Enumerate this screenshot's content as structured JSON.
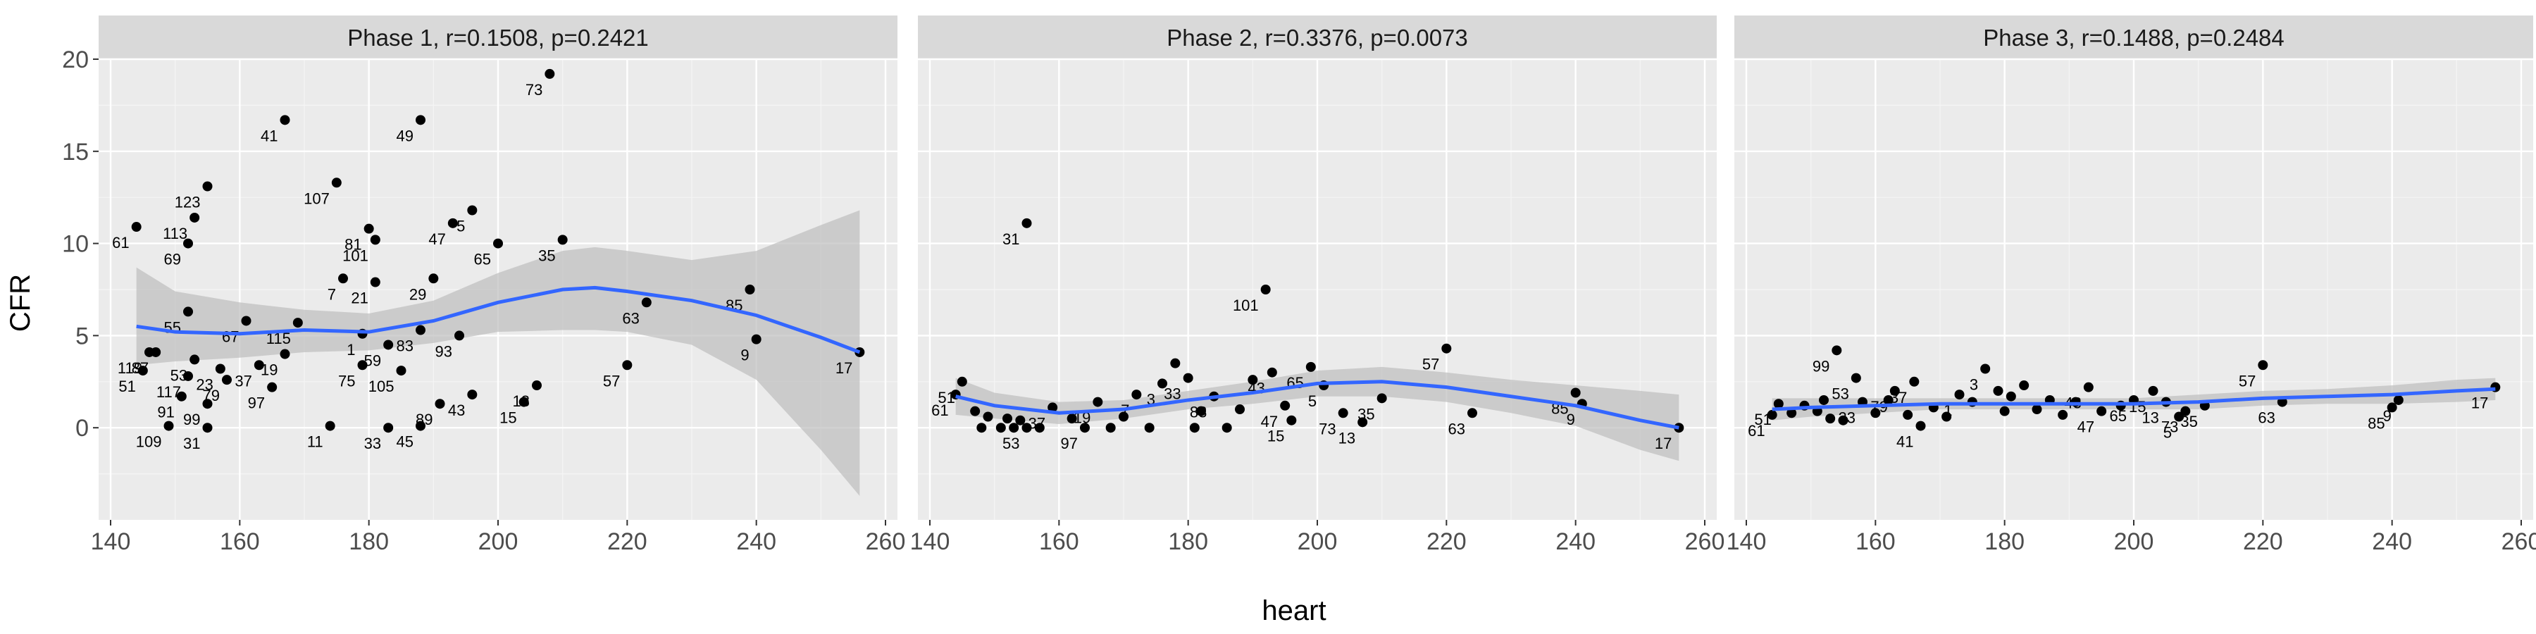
{
  "colors": {
    "panel_bg": "#ebebeb",
    "strip_bg": "#d9d9d9",
    "grid_major": "#ffffff",
    "point": "#000000",
    "smooth_line": "#3366ff",
    "confidence_band": "#bdbdbd"
  },
  "chart_data": {
    "type": "scatter",
    "xlabel": "heart",
    "ylabel": "CFR",
    "xlim": [
      140,
      260
    ],
    "ylim": [
      -5,
      20
    ],
    "x_ticks": [
      "140",
      "160",
      "180",
      "200",
      "220",
      "240",
      "260"
    ],
    "y_ticks": [
      "0",
      "5",
      "10",
      "15",
      "20"
    ],
    "grid": true,
    "panels": [
      {
        "title": "Phase 1, r=0.1508, p=0.2421",
        "points": [
          {
            "x": 144,
            "y": 10.9,
            "label": "61"
          },
          {
            "x": 146,
            "y": 4.1,
            "label": "119"
          },
          {
            "x": 145,
            "y": 3.1,
            "label": "51"
          },
          {
            "x": 147,
            "y": 4.1,
            "label": "87"
          },
          {
            "x": 149,
            "y": 0.1,
            "label": "109"
          },
          {
            "x": 151,
            "y": 1.7,
            "label": "91"
          },
          {
            "x": 152,
            "y": 2.8,
            "label": "117"
          },
          {
            "x": 153,
            "y": 3.7,
            "label": "53"
          },
          {
            "x": 152,
            "y": 10.0,
            "label": "69"
          },
          {
            "x": 153,
            "y": 11.4,
            "label": "113"
          },
          {
            "x": 152,
            "y": 6.3,
            "label": "55"
          },
          {
            "x": 155,
            "y": 13.1,
            "label": "123"
          },
          {
            "x": 155,
            "y": 1.3,
            "label": "99"
          },
          {
            "x": 155,
            "y": 0.0,
            "label": "31"
          },
          {
            "x": 157,
            "y": 3.2,
            "label": "23"
          },
          {
            "x": 158,
            "y": 2.6,
            "label": "79"
          },
          {
            "x": 161,
            "y": 5.8,
            "label": "67"
          },
          {
            "x": 163,
            "y": 3.4,
            "label": "37"
          },
          {
            "x": 165,
            "y": 2.2,
            "label": "97"
          },
          {
            "x": 167,
            "y": 16.7,
            "label": "41"
          },
          {
            "x": 167,
            "y": 4.0,
            "label": "19"
          },
          {
            "x": 169,
            "y": 5.7,
            "label": "115"
          },
          {
            "x": 174,
            "y": 0.1,
            "label": "11"
          },
          {
            "x": 175,
            "y": 13.3,
            "label": "107"
          },
          {
            "x": 176,
            "y": 8.1,
            "label": "7"
          },
          {
            "x": 179,
            "y": 5.1,
            "label": "1"
          },
          {
            "x": 179,
            "y": 3.4,
            "label": "75"
          },
          {
            "x": 180,
            "y": 10.8,
            "label": "81"
          },
          {
            "x": 181,
            "y": 7.9,
            "label": "21"
          },
          {
            "x": 181,
            "y": 10.2,
            "label": "101"
          },
          {
            "x": 183,
            "y": 4.5,
            "label": "59"
          },
          {
            "x": 183,
            "y": 0.0,
            "label": "33"
          },
          {
            "x": 185,
            "y": 3.1,
            "label": "105"
          },
          {
            "x": 188,
            "y": 16.7,
            "label": "49"
          },
          {
            "x": 188,
            "y": 5.3,
            "label": "83"
          },
          {
            "x": 188,
            "y": 0.1,
            "label": "45"
          },
          {
            "x": 190,
            "y": 8.1,
            "label": "29"
          },
          {
            "x": 191,
            "y": 1.3,
            "label": "89"
          },
          {
            "x": 193,
            "y": 11.1,
            "label": "47"
          },
          {
            "x": 194,
            "y": 5.0,
            "label": "93"
          },
          {
            "x": 196,
            "y": 1.8,
            "label": "43"
          },
          {
            "x": 196,
            "y": 11.8,
            "label": "5"
          },
          {
            "x": 200,
            "y": 10.0,
            "label": "65"
          },
          {
            "x": 204,
            "y": 1.4,
            "label": "15"
          },
          {
            "x": 206,
            "y": 2.3,
            "label": "13"
          },
          {
            "x": 208,
            "y": 19.2,
            "label": "73"
          },
          {
            "x": 210,
            "y": 10.2,
            "label": "35"
          },
          {
            "x": 220,
            "y": 3.4,
            "label": "57"
          },
          {
            "x": 223,
            "y": 6.8,
            "label": "63"
          },
          {
            "x": 239,
            "y": 7.5,
            "label": "85"
          },
          {
            "x": 240,
            "y": 4.8,
            "label": "9"
          },
          {
            "x": 256,
            "y": 4.1,
            "label": "17"
          }
        ],
        "smooth": [
          [
            144,
            5.5
          ],
          [
            150,
            5.2
          ],
          [
            160,
            5.1
          ],
          [
            170,
            5.3
          ],
          [
            180,
            5.2
          ],
          [
            190,
            5.8
          ],
          [
            200,
            6.8
          ],
          [
            210,
            7.5
          ],
          [
            215,
            7.6
          ],
          [
            220,
            7.4
          ],
          [
            230,
            6.9
          ],
          [
            240,
            6.1
          ],
          [
            250,
            4.9
          ],
          [
            256,
            4.1
          ]
        ],
        "band": [
          [
            144,
            8.7,
            3.4
          ],
          [
            150,
            7.4,
            3.6
          ],
          [
            160,
            6.8,
            3.8
          ],
          [
            170,
            6.4,
            4.1
          ],
          [
            180,
            6.2,
            4.2
          ],
          [
            190,
            6.9,
            4.6
          ],
          [
            200,
            8.4,
            5.2
          ],
          [
            210,
            9.6,
            5.3
          ],
          [
            215,
            9.8,
            5.3
          ],
          [
            220,
            9.6,
            5.2
          ],
          [
            230,
            9.1,
            4.5
          ],
          [
            240,
            9.6,
            2.6
          ],
          [
            250,
            11.0,
            -1.2
          ],
          [
            256,
            11.8,
            -3.7
          ]
        ]
      },
      {
        "title": "Phase 2, r=0.3376, p=0.0073",
        "points": [
          {
            "x": 144,
            "y": 1.8,
            "label": "61"
          },
          {
            "x": 145,
            "y": 2.5,
            "label": "51"
          },
          {
            "x": 147,
            "y": 0.9,
            "label": ""
          },
          {
            "x": 148,
            "y": 0.0,
            "label": ""
          },
          {
            "x": 149,
            "y": 0.6,
            "label": ""
          },
          {
            "x": 151,
            "y": 0.0,
            "label": ""
          },
          {
            "x": 152,
            "y": 0.5,
            "label": ""
          },
          {
            "x": 153,
            "y": 0.0,
            "label": ""
          },
          {
            "x": 154,
            "y": 0.4,
            "label": ""
          },
          {
            "x": 155,
            "y": 0.0,
            "label": "53"
          },
          {
            "x": 155,
            "y": 11.1,
            "label": "31"
          },
          {
            "x": 157,
            "y": 0.0,
            "label": ""
          },
          {
            "x": 159,
            "y": 1.1,
            "label": "37"
          },
          {
            "x": 162,
            "y": 0.5,
            "label": ""
          },
          {
            "x": 164,
            "y": 0.0,
            "label": "97"
          },
          {
            "x": 166,
            "y": 1.4,
            "label": "19"
          },
          {
            "x": 168,
            "y": 0.0,
            "label": ""
          },
          {
            "x": 170,
            "y": 0.6,
            "label": ""
          },
          {
            "x": 172,
            "y": 1.8,
            "label": "7"
          },
          {
            "x": 174,
            "y": 0.0,
            "label": ""
          },
          {
            "x": 176,
            "y": 2.4,
            "label": "3"
          },
          {
            "x": 178,
            "y": 3.5,
            "label": ""
          },
          {
            "x": 180,
            "y": 2.7,
            "label": "33"
          },
          {
            "x": 181,
            "y": 0.0,
            "label": ""
          },
          {
            "x": 182,
            "y": 0.9,
            "label": ""
          },
          {
            "x": 184,
            "y": 1.7,
            "label": "83"
          },
          {
            "x": 186,
            "y": 0.0,
            "label": ""
          },
          {
            "x": 188,
            "y": 1.0,
            "label": ""
          },
          {
            "x": 190,
            "y": 2.6,
            "label": ""
          },
          {
            "x": 192,
            "y": 7.5,
            "label": "101"
          },
          {
            "x": 193,
            "y": 3.0,
            "label": "43"
          },
          {
            "x": 195,
            "y": 1.2,
            "label": "47"
          },
          {
            "x": 196,
            "y": 0.4,
            "label": "15"
          },
          {
            "x": 199,
            "y": 3.3,
            "label": "65"
          },
          {
            "x": 201,
            "y": 2.3,
            "label": "5"
          },
          {
            "x": 204,
            "y": 0.8,
            "label": "73"
          },
          {
            "x": 207,
            "y": 0.3,
            "label": "13"
          },
          {
            "x": 210,
            "y": 1.6,
            "label": "35"
          },
          {
            "x": 220,
            "y": 4.3,
            "label": "57"
          },
          {
            "x": 224,
            "y": 0.8,
            "label": "63"
          },
          {
            "x": 240,
            "y": 1.9,
            "label": "85"
          },
          {
            "x": 241,
            "y": 1.3,
            "label": "9"
          },
          {
            "x": 256,
            "y": 0.0,
            "label": "17"
          }
        ],
        "smooth": [
          [
            144,
            1.7
          ],
          [
            150,
            1.2
          ],
          [
            160,
            0.8
          ],
          [
            170,
            1.0
          ],
          [
            180,
            1.5
          ],
          [
            190,
            1.9
          ],
          [
            200,
            2.4
          ],
          [
            210,
            2.5
          ],
          [
            220,
            2.2
          ],
          [
            230,
            1.7
          ],
          [
            240,
            1.2
          ],
          [
            250,
            0.4
          ],
          [
            256,
            0.0
          ]
        ],
        "band": [
          [
            144,
            2.7,
            0.7
          ],
          [
            150,
            1.9,
            0.5
          ],
          [
            160,
            1.4,
            0.2
          ],
          [
            170,
            1.5,
            0.5
          ],
          [
            180,
            2.0,
            1.0
          ],
          [
            190,
            2.5,
            1.3
          ],
          [
            200,
            3.1,
            1.7
          ],
          [
            210,
            3.3,
            1.7
          ],
          [
            220,
            3.0,
            1.4
          ],
          [
            230,
            2.6,
            0.8
          ],
          [
            240,
            2.3,
            0.1
          ],
          [
            250,
            2.0,
            -1.2
          ],
          [
            256,
            1.8,
            -1.8
          ]
        ]
      },
      {
        "title": "Phase 3, r=0.1488, p=0.2484",
        "points": [
          {
            "x": 144,
            "y": 0.7,
            "label": "61"
          },
          {
            "x": 145,
            "y": 1.3,
            "label": "51"
          },
          {
            "x": 147,
            "y": 0.8,
            "label": ""
          },
          {
            "x": 149,
            "y": 1.2,
            "label": ""
          },
          {
            "x": 151,
            "y": 0.9,
            "label": ""
          },
          {
            "x": 152,
            "y": 1.5,
            "label": ""
          },
          {
            "x": 153,
            "y": 0.5,
            "label": ""
          },
          {
            "x": 154,
            "y": 4.2,
            "label": "99"
          },
          {
            "x": 155,
            "y": 0.4,
            "label": ""
          },
          {
            "x": 157,
            "y": 2.7,
            "label": "53"
          },
          {
            "x": 158,
            "y": 1.4,
            "label": "23"
          },
          {
            "x": 160,
            "y": 0.8,
            "label": ""
          },
          {
            "x": 162,
            "y": 1.5,
            "label": ""
          },
          {
            "x": 163,
            "y": 2.0,
            "label": "79"
          },
          {
            "x": 165,
            "y": 0.7,
            "label": ""
          },
          {
            "x": 166,
            "y": 2.5,
            "label": "37"
          },
          {
            "x": 167,
            "y": 0.1,
            "label": "41"
          },
          {
            "x": 169,
            "y": 1.1,
            "label": ""
          },
          {
            "x": 171,
            "y": 0.6,
            "label": ""
          },
          {
            "x": 173,
            "y": 1.8,
            "label": "1"
          },
          {
            "x": 175,
            "y": 1.4,
            "label": ""
          },
          {
            "x": 177,
            "y": 3.2,
            "label": "3"
          },
          {
            "x": 179,
            "y": 2.0,
            "label": ""
          },
          {
            "x": 180,
            "y": 0.9,
            "label": ""
          },
          {
            "x": 181,
            "y": 1.7,
            "label": ""
          },
          {
            "x": 183,
            "y": 2.3,
            "label": ""
          },
          {
            "x": 185,
            "y": 1.0,
            "label": ""
          },
          {
            "x": 187,
            "y": 1.5,
            "label": ""
          },
          {
            "x": 189,
            "y": 0.7,
            "label": ""
          },
          {
            "x": 191,
            "y": 1.4,
            "label": ""
          },
          {
            "x": 193,
            "y": 2.2,
            "label": "43"
          },
          {
            "x": 195,
            "y": 0.9,
            "label": "47"
          },
          {
            "x": 198,
            "y": 1.2,
            "label": ""
          },
          {
            "x": 200,
            "y": 1.5,
            "label": "65"
          },
          {
            "x": 203,
            "y": 2.0,
            "label": "15"
          },
          {
            "x": 205,
            "y": 1.4,
            "label": "13"
          },
          {
            "x": 207,
            "y": 0.6,
            "label": "5"
          },
          {
            "x": 208,
            "y": 0.9,
            "label": "73"
          },
          {
            "x": 211,
            "y": 1.2,
            "label": "35"
          },
          {
            "x": 220,
            "y": 3.4,
            "label": "57"
          },
          {
            "x": 223,
            "y": 1.4,
            "label": "63"
          },
          {
            "x": 240,
            "y": 1.1,
            "label": "85"
          },
          {
            "x": 241,
            "y": 1.5,
            "label": "9"
          },
          {
            "x": 256,
            "y": 2.2,
            "label": "17"
          }
        ],
        "smooth": [
          [
            144,
            1.0
          ],
          [
            150,
            1.1
          ],
          [
            160,
            1.2
          ],
          [
            170,
            1.3
          ],
          [
            180,
            1.3
          ],
          [
            190,
            1.3
          ],
          [
            200,
            1.3
          ],
          [
            210,
            1.4
          ],
          [
            220,
            1.6
          ],
          [
            230,
            1.7
          ],
          [
            240,
            1.8
          ],
          [
            250,
            2.0
          ],
          [
            256,
            2.1
          ]
        ],
        "band": [
          [
            144,
            1.6,
            0.4
          ],
          [
            150,
            1.6,
            0.6
          ],
          [
            160,
            1.6,
            0.8
          ],
          [
            170,
            1.6,
            1.0
          ],
          [
            180,
            1.6,
            1.0
          ],
          [
            190,
            1.6,
            1.0
          ],
          [
            200,
            1.6,
            1.0
          ],
          [
            210,
            1.8,
            1.0
          ],
          [
            220,
            2.0,
            1.2
          ],
          [
            230,
            2.1,
            1.3
          ],
          [
            240,
            2.3,
            1.3
          ],
          [
            250,
            2.6,
            1.4
          ],
          [
            256,
            2.7,
            1.5
          ]
        ]
      }
    ]
  }
}
